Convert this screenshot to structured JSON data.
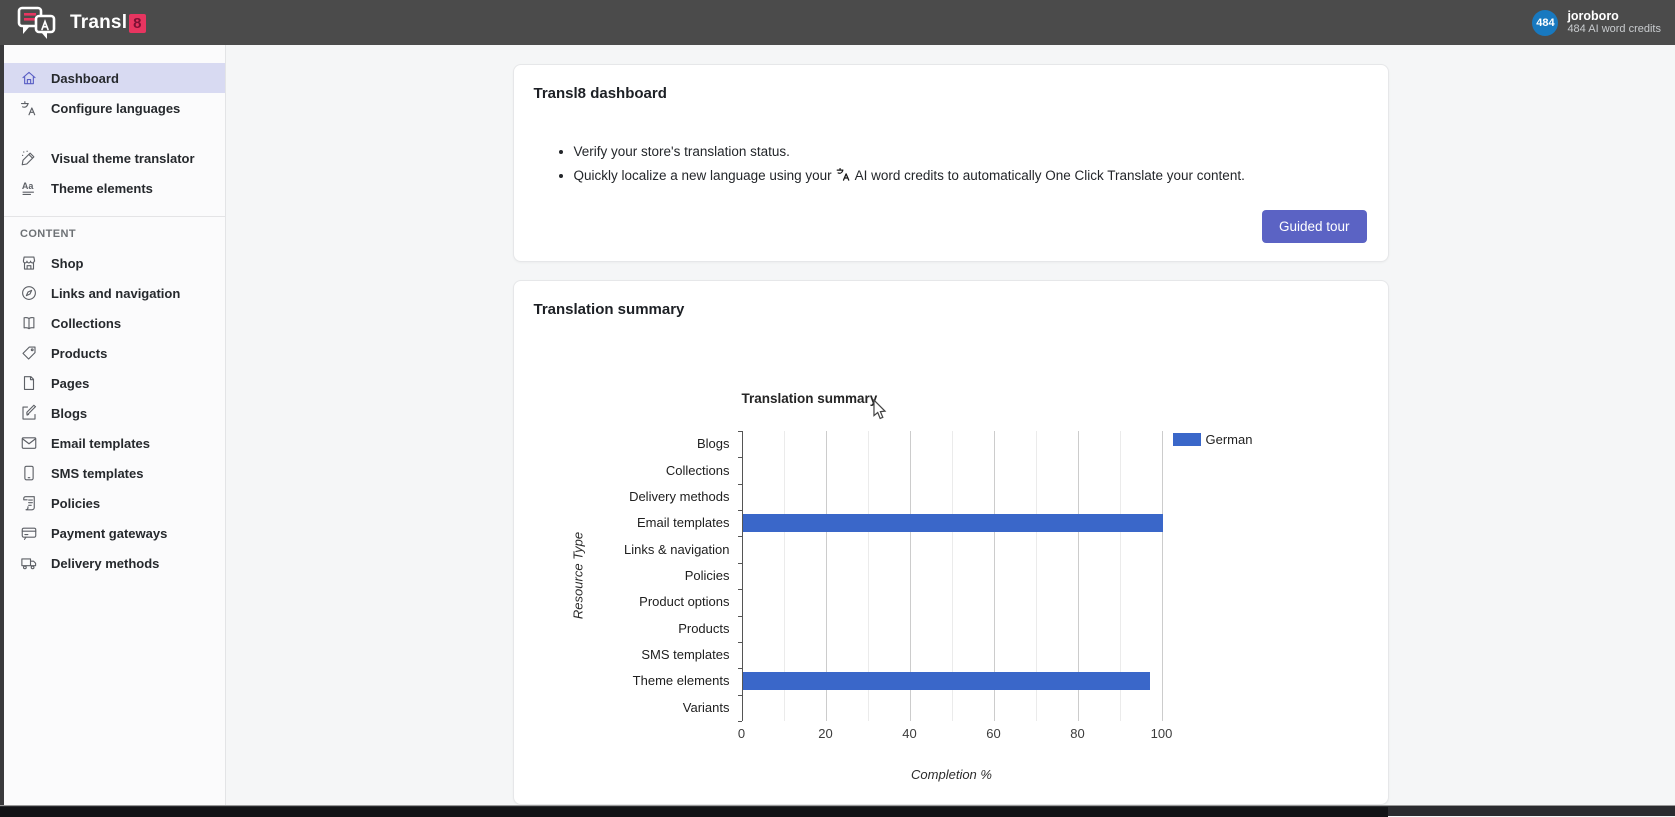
{
  "topbar": {
    "brand": "Transl",
    "brand_suffix": "8",
    "account": {
      "badge": "484",
      "username": "joroboro",
      "credits": "484 AI word credits"
    }
  },
  "sidebar": {
    "groups": [
      {
        "items": [
          {
            "label": "Dashboard",
            "icon": "home-icon",
            "active": true
          },
          {
            "label": "Configure languages",
            "icon": "translate-icon",
            "active": false
          }
        ]
      },
      {
        "items": [
          {
            "label": "Visual theme translator",
            "icon": "theme-translator-icon",
            "active": false
          },
          {
            "label": "Theme elements",
            "icon": "typography-icon",
            "active": false
          }
        ]
      }
    ],
    "section_label": "CONTENT",
    "content_items": [
      {
        "label": "Shop",
        "icon": "shop-icon"
      },
      {
        "label": "Links and navigation",
        "icon": "compass-icon"
      },
      {
        "label": "Collections",
        "icon": "collections-icon"
      },
      {
        "label": "Products",
        "icon": "tag-icon"
      },
      {
        "label": "Pages",
        "icon": "page-icon"
      },
      {
        "label": "Blogs",
        "icon": "blog-icon"
      },
      {
        "label": "Email templates",
        "icon": "email-icon"
      },
      {
        "label": "SMS templates",
        "icon": "sms-icon"
      },
      {
        "label": "Policies",
        "icon": "policies-icon"
      },
      {
        "label": "Payment gateways",
        "icon": "payment-icon"
      },
      {
        "label": "Delivery methods",
        "icon": "delivery-icon"
      }
    ]
  },
  "dashboard_card": {
    "title": "Transl8 dashboard",
    "bullets": {
      "first": "Verify your store's translation status.",
      "second_before": "Quickly localize a new language using your",
      "second_after": "AI word credits to automatically One Click Translate your content."
    },
    "button_label": "Guided tour",
    "button_color": "#5b63c4"
  },
  "summary_card": {
    "title": "Translation summary"
  },
  "chart_data": {
    "type": "bar",
    "orientation": "horizontal",
    "title": "Translation summary",
    "categories": [
      "Blogs",
      "Collections",
      "Delivery methods",
      "Email templates",
      "Links & navigation",
      "Policies",
      "Product options",
      "Products",
      "SMS templates",
      "Theme elements",
      "Variants"
    ],
    "series": [
      {
        "name": "German",
        "color": "#3a67c9",
        "values": [
          0,
          0,
          0,
          100,
          0,
          0,
          0,
          0,
          0,
          97,
          0
        ]
      }
    ],
    "xlabel": "Completion %",
    "ylabel": "Resource Type",
    "xlim": [
      0,
      100
    ],
    "x_major_ticks": [
      0,
      20,
      40,
      60,
      80,
      100
    ],
    "x_minor_step": 10,
    "grid": true,
    "legend_position": "right"
  }
}
